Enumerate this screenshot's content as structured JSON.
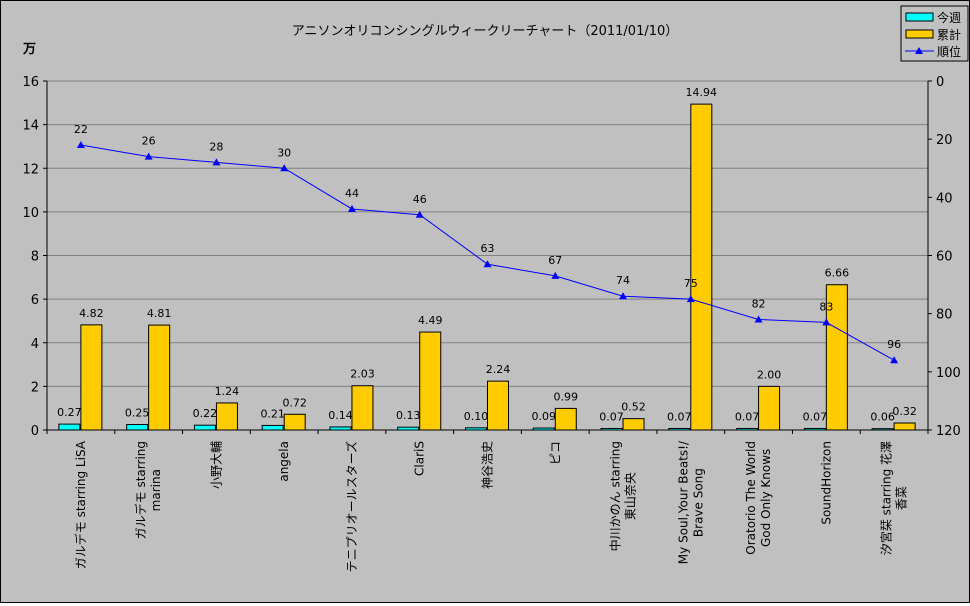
{
  "chart_data": {
    "type": "bar",
    "title": "アニソンオリコンシングルウィークリーチャート（2011/01/10）",
    "y_unit_label": "万",
    "ylim": [
      0,
      16
    ],
    "yticks": [
      0,
      2,
      4,
      6,
      8,
      10,
      12,
      14,
      16
    ],
    "y2lim": [
      120,
      0
    ],
    "y2ticks": [
      0,
      20,
      40,
      60,
      80,
      100,
      120
    ],
    "y2_reversed": true,
    "grid": true,
    "legend_placement": "top-right",
    "categories": [
      [
        "ガルデモ starring LiSA"
      ],
      [
        "ガルデモ starring",
        "marina"
      ],
      [
        "小野大輔"
      ],
      [
        "angela"
      ],
      [
        "テニプリオールスターズ"
      ],
      [
        "ClariS"
      ],
      [
        "神谷浩史"
      ],
      [
        "ピコ"
      ],
      [
        "中川かのん starring",
        "東山奈央"
      ],
      [
        "My Soul,Your Beats!/",
        "Brave Song"
      ],
      [
        "Oratorio The World",
        "God Only Knows"
      ],
      [
        "SoundHorizon"
      ],
      [
        "汐宮栞 starring 花澤",
        "香菜"
      ]
    ],
    "series": [
      {
        "name": "今週",
        "type": "bar",
        "axis": "left",
        "color": "#00FFFF",
        "values": [
          0.27,
          0.25,
          0.22,
          0.21,
          0.14,
          0.13,
          0.1,
          0.09,
          0.07,
          0.07,
          0.07,
          0.07,
          0.06
        ],
        "labels": [
          "0.27",
          "0.25",
          "0.22",
          "0.21",
          "0.14",
          "0.13",
          "0.10",
          "0.09",
          "0.07",
          "0.07",
          "0.07",
          "0.07",
          "0.06"
        ]
      },
      {
        "name": "累計",
        "type": "bar",
        "axis": "left",
        "color": "#FFCC00",
        "values": [
          4.82,
          4.81,
          1.24,
          0.72,
          2.03,
          4.49,
          2.24,
          0.99,
          0.52,
          14.94,
          2.0,
          6.66,
          0.32
        ],
        "labels": [
          "4.82",
          "4.81",
          "1.24",
          "0.72",
          "2.03",
          "4.49",
          "2.24",
          "0.99",
          "0.52",
          "14.94",
          "2.00",
          "6.66",
          "0.32"
        ]
      },
      {
        "name": "順位",
        "type": "line",
        "axis": "right",
        "color": "#0000FF",
        "marker": "triangle",
        "values": [
          22,
          26,
          28,
          30,
          44,
          46,
          63,
          67,
          74,
          75,
          82,
          83,
          96
        ],
        "labels": [
          "22",
          "26",
          "28",
          "30",
          "44",
          "46",
          "63",
          "67",
          "74",
          "75",
          "82",
          "83",
          "96"
        ]
      }
    ]
  }
}
